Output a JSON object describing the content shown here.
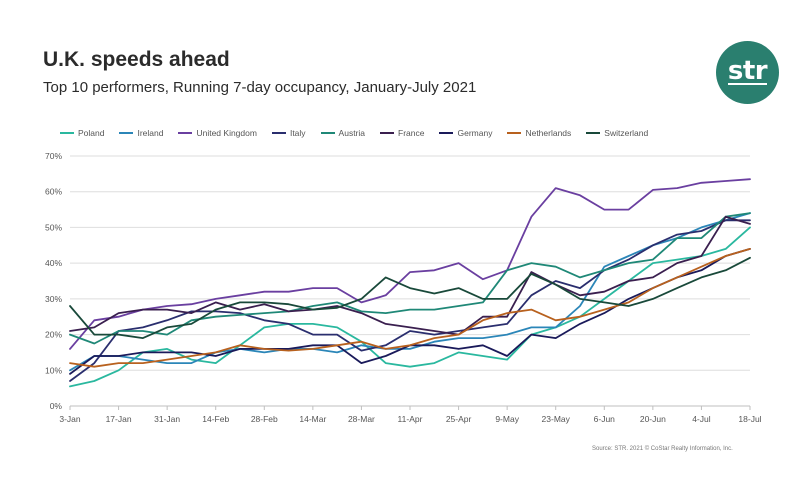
{
  "title": "U.K. speeds ahead",
  "subtitle": "Top 10 performers, Running 7-day occupancy, January-July 2021",
  "logo_text": "str",
  "source": "Source: STR. 2021 © CoStar Realty Information, Inc.",
  "chart_data": {
    "type": "line",
    "ylim": [
      0,
      70
    ],
    "yticks": [
      "0%",
      "10%",
      "20%",
      "30%",
      "40%",
      "50%",
      "60%",
      "70%"
    ],
    "x_count": 29,
    "xtick_labels": [
      "3-Jan",
      "17-Jan",
      "31-Jan",
      "14-Feb",
      "28-Feb",
      "14-Mar",
      "28-Mar",
      "11-Apr",
      "25-Apr",
      "9-May",
      "23-May",
      "6-Jun",
      "20-Jun",
      "4-Jul",
      "18-Jul"
    ],
    "series": [
      {
        "name": "Poland",
        "color": "#2ab89f",
        "values": [
          5.5,
          7,
          10,
          15,
          16,
          13,
          12,
          17,
          22,
          23,
          23,
          22,
          18,
          12,
          11,
          12,
          15,
          14,
          13,
          20,
          22,
          25,
          30,
          35,
          40,
          41,
          42,
          44,
          50
        ]
      },
      {
        "name": "Ireland",
        "color": "#2b86b8",
        "values": [
          10,
          14,
          14,
          13,
          12,
          12,
          15,
          16,
          15,
          16,
          16,
          15,
          17,
          16,
          16,
          18,
          19,
          19,
          20,
          22,
          22,
          28,
          39,
          42,
          45,
          47,
          50,
          52,
          54
        ]
      },
      {
        "name": "United Kingdom",
        "color": "#6a3fa0",
        "values": [
          16,
          24,
          25,
          27,
          28,
          28.5,
          30,
          31,
          32,
          32,
          33,
          33,
          29,
          31,
          37.5,
          38,
          40,
          35.5,
          38,
          53,
          61,
          59,
          55,
          55,
          60.5,
          61,
          62.5,
          63,
          63.5
        ]
      },
      {
        "name": "Italy",
        "color": "#2a2e6e",
        "values": [
          7,
          12,
          21,
          22,
          24,
          26.5,
          26.5,
          26,
          24,
          23,
          20,
          20,
          15.5,
          17,
          21,
          20,
          21,
          22,
          23,
          31,
          35,
          33,
          38,
          41,
          45,
          48,
          49,
          52,
          52
        ]
      },
      {
        "name": "Austria",
        "color": "#1f8877",
        "values": [
          20,
          17.5,
          21,
          21,
          20,
          24,
          25,
          25.5,
          26,
          26.5,
          28,
          29,
          26.5,
          26,
          27,
          27,
          28,
          29,
          38,
          40,
          39,
          36,
          38,
          40,
          41,
          47,
          47,
          53,
          54
        ]
      },
      {
        "name": "France",
        "color": "#3a1f4f",
        "values": [
          21,
          22,
          26,
          27,
          27,
          26,
          29,
          27,
          28.5,
          26.5,
          27,
          28,
          26,
          23,
          22,
          21,
          20,
          25,
          25,
          37.5,
          34,
          31,
          32,
          35,
          36,
          40,
          42,
          53,
          51
        ]
      },
      {
        "name": "Germany",
        "color": "#1a1a5a",
        "values": [
          9,
          14,
          14,
          15,
          15,
          15,
          14,
          16,
          16,
          16,
          17,
          17,
          12,
          14,
          17,
          17,
          16,
          17,
          14,
          20,
          19,
          23,
          26,
          30,
          33,
          36,
          38,
          42,
          44
        ]
      },
      {
        "name": "Netherlands",
        "color": "#b8611e",
        "values": [
          12,
          11,
          12,
          12,
          13,
          14,
          15,
          17,
          16,
          15.5,
          16,
          17,
          18,
          16,
          17,
          19,
          20,
          24,
          26,
          27,
          24,
          25,
          27,
          29,
          33,
          36,
          39,
          42,
          44
        ]
      },
      {
        "name": "Switzerland",
        "color": "#19493a",
        "values": [
          28,
          20,
          20,
          19,
          22,
          23,
          27,
          29,
          29,
          28.5,
          27,
          27.5,
          30,
          36,
          33,
          31.5,
          33,
          30,
          30,
          37,
          34,
          30,
          29,
          28,
          30,
          33,
          36,
          38,
          41.5
        ]
      }
    ]
  }
}
